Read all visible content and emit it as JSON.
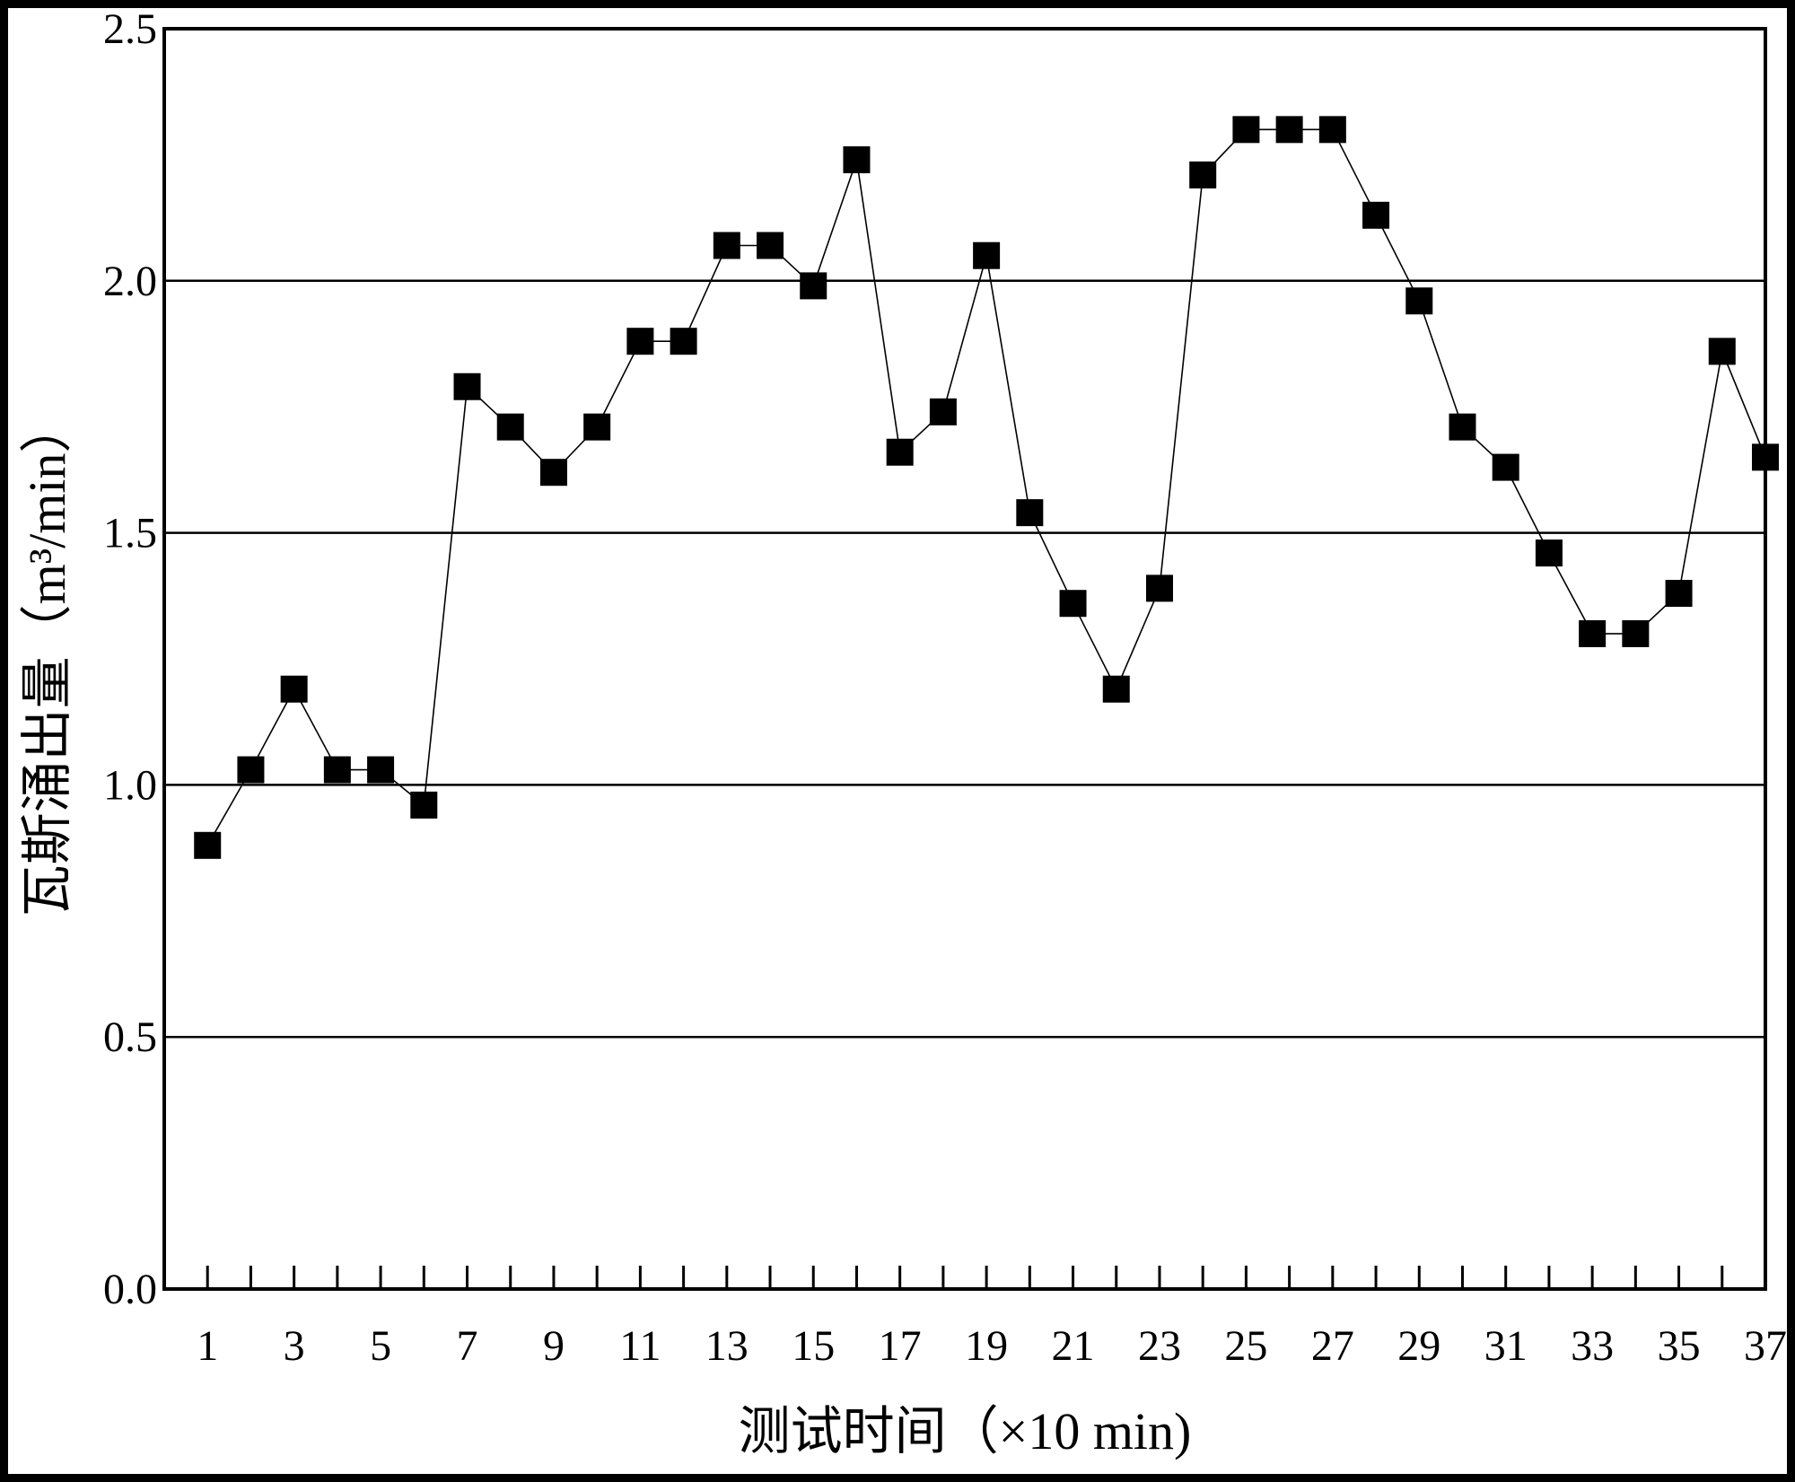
{
  "chart_data": {
    "type": "line",
    "title": "",
    "xlabel": "测试时间（×10 min)",
    "ylabel": "瓦斯涌出量（m³/min）",
    "xlim": [
      0,
      37
    ],
    "ylim": [
      0,
      2.5
    ],
    "x_tick_labels": [
      "1",
      "3",
      "5",
      "7",
      "9",
      "11",
      "13",
      "15",
      "17",
      "19",
      "21",
      "23",
      "25",
      "27",
      "29",
      "31",
      "33",
      "35",
      "37"
    ],
    "y_tick_labels": [
      "0.0",
      "0.5",
      "1.0",
      "1.5",
      "2.0",
      "2.5"
    ],
    "grid": "horizontal",
    "legend": "none",
    "marker": "square",
    "color": "#000000",
    "x": [
      1,
      2,
      3,
      4,
      5,
      6,
      7,
      8,
      9,
      10,
      11,
      12,
      13,
      14,
      15,
      16,
      17,
      18,
      19,
      20,
      21,
      22,
      23,
      24,
      25,
      26,
      27,
      28,
      29,
      30,
      31,
      32,
      33,
      34,
      35,
      36,
      37
    ],
    "values": [
      0.88,
      1.03,
      1.19,
      1.03,
      1.03,
      0.96,
      1.79,
      1.71,
      1.62,
      1.71,
      1.88,
      1.88,
      2.07,
      2.07,
      1.99,
      2.24,
      1.66,
      1.74,
      2.05,
      1.54,
      1.36,
      1.19,
      1.39,
      2.21,
      2.3,
      2.3,
      2.3,
      2.13,
      1.96,
      1.71,
      1.63,
      1.46,
      1.3,
      1.3,
      1.38,
      1.86,
      1.65
    ]
  }
}
